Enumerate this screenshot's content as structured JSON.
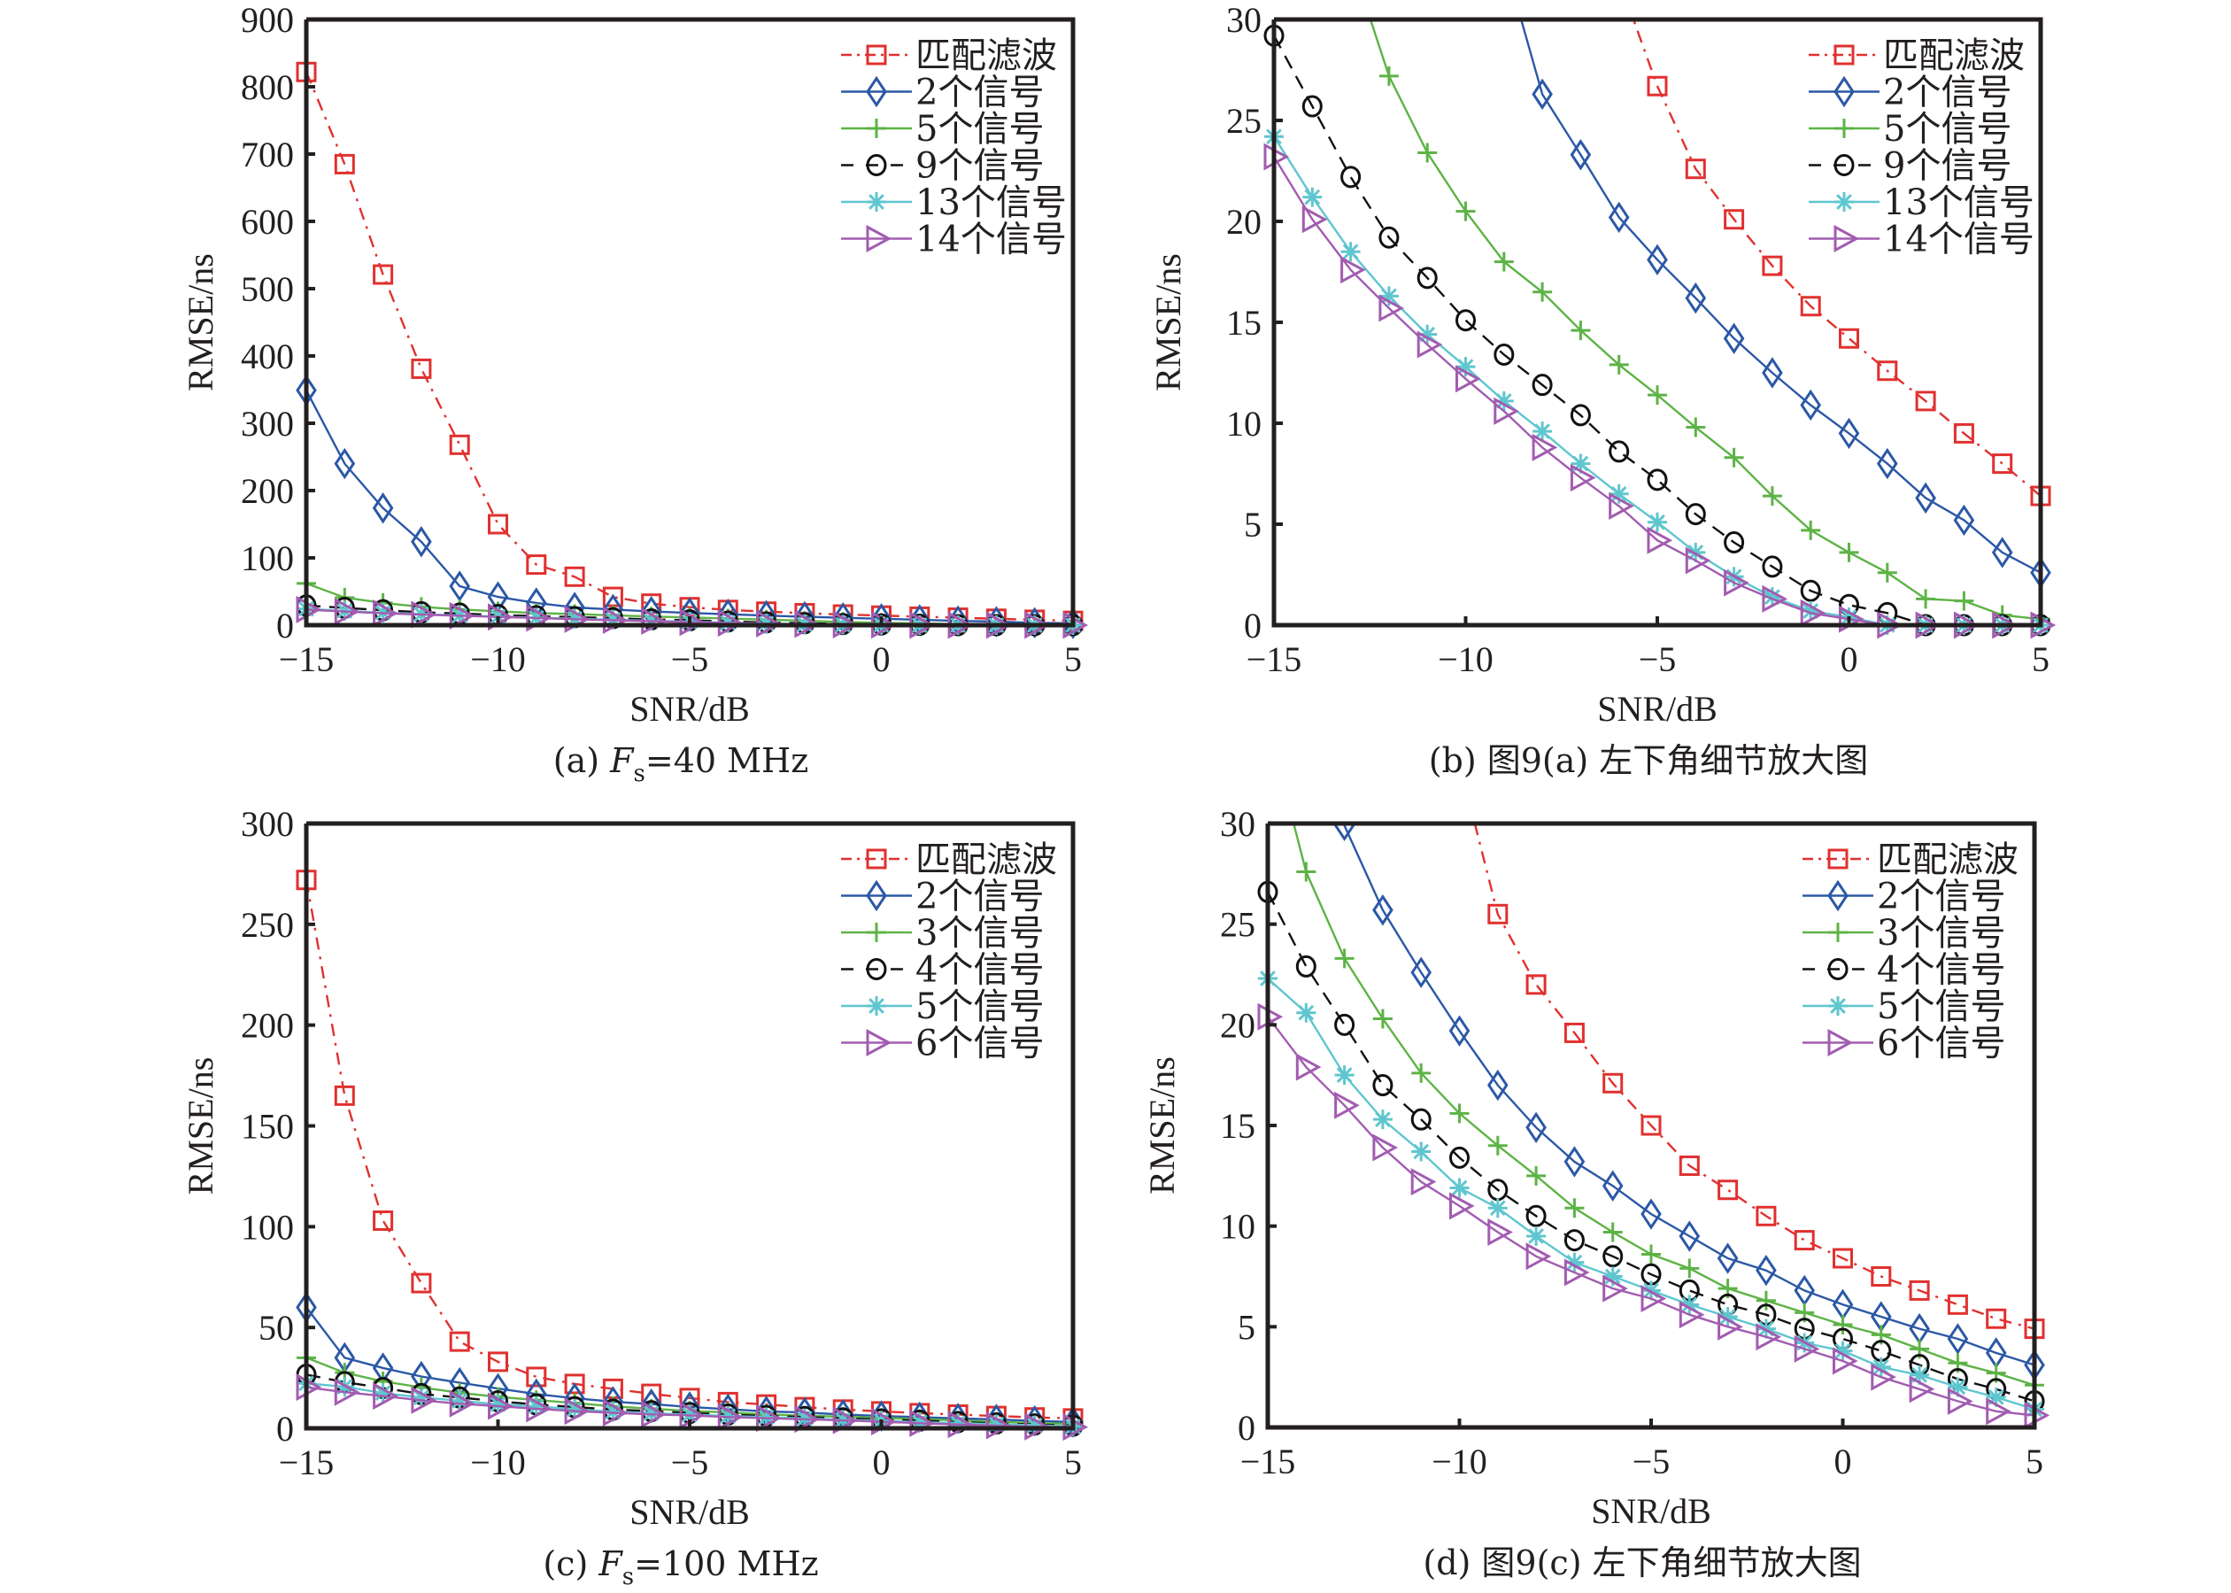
{
  "chart_data": [
    {
      "id": "a",
      "type": "line",
      "caption": {
        "prefix": "(a) ",
        "var": "F",
        "sub": "s",
        "suffix": "=40 MHz"
      },
      "xlabel": "SNR/dB",
      "ylabel": "RMSE/ns",
      "xlim": [
        -15,
        5
      ],
      "ylim": [
        0,
        900
      ],
      "xticks": [
        -15,
        -10,
        -5,
        0,
        5
      ],
      "xtick_labels": [
        "−15",
        "−10",
        "−5",
        "0",
        "5"
      ],
      "yticks": [
        0,
        100,
        200,
        300,
        400,
        500,
        600,
        700,
        800,
        900
      ],
      "ytick_labels": [
        "0",
        "100",
        "200",
        "300",
        "400",
        "500",
        "600",
        "700",
        "800",
        "900"
      ],
      "grid": false,
      "legend_position": "top-right",
      "x": [
        -15,
        -14,
        -13,
        -12,
        -11,
        -10,
        -9,
        -8,
        -7,
        -6,
        -5,
        -4,
        -3,
        -2,
        -1,
        0,
        1,
        2,
        3,
        4,
        5
      ],
      "series": [
        {
          "name": "匹配滤波",
          "color": "#e0312f",
          "marker": "square",
          "dash": "dashdot",
          "values": [
            822,
            685,
            521,
            381,
            268,
            150,
            90,
            72,
            42,
            32,
            26.7,
            22.6,
            20.1,
            17.8,
            15.8,
            14.2,
            12.6,
            11.1,
            9.5,
            8.0,
            6.4
          ]
        },
        {
          "name": "2个信号",
          "color": "#2b58a6",
          "marker": "diamond",
          "dash": "solid",
          "values": [
            349,
            240,
            174,
            124,
            58,
            42,
            33,
            26.3,
            23.3,
            20.2,
            18.1,
            16.2,
            14.2,
            12.5,
            10.9,
            9.5,
            8.0,
            6.3,
            5.2,
            3.6,
            2.6
          ]
        },
        {
          "name": "5个信号",
          "color": "#5db346",
          "marker": "plus",
          "dash": "solid",
          "values": [
            62,
            41,
            33,
            27.2,
            23.4,
            20.5,
            18.0,
            16.5,
            14.6,
            12.9,
            11.4,
            9.8,
            8.3,
            6.4,
            4.7,
            3.6,
            2.6,
            1.3,
            1.2,
            0.5,
            0.3
          ]
        },
        {
          "name": "9个信号",
          "color": "#111111",
          "marker": "circle",
          "dash": "dashed",
          "values": [
            29.2,
            25.7,
            22.2,
            19.2,
            17.2,
            15.1,
            13.4,
            11.9,
            10.4,
            8.6,
            7.2,
            5.5,
            4.1,
            2.9,
            1.7,
            1.0,
            0.6,
            0,
            0,
            0,
            0
          ]
        },
        {
          "name": "13个信号",
          "color": "#5fc6cf",
          "marker": "asterisk",
          "dash": "solid",
          "values": [
            24.2,
            21.2,
            18.5,
            16.3,
            14.4,
            12.8,
            11.1,
            9.6,
            8.0,
            6.5,
            5.1,
            3.6,
            2.4,
            1.4,
            0.7,
            0.4,
            0,
            0,
            0,
            0,
            0
          ]
        },
        {
          "name": "14个信号",
          "color": "#a25cb0",
          "marker": "triangle-right",
          "dash": "solid",
          "values": [
            23.2,
            20.1,
            17.6,
            15.7,
            13.9,
            12.2,
            10.6,
            8.8,
            7.3,
            5.9,
            4.2,
            3.2,
            2.1,
            1.3,
            0.6,
            0.3,
            0,
            0,
            0,
            0,
            0
          ]
        }
      ]
    },
    {
      "id": "b",
      "type": "line",
      "caption": {
        "prefix": "(b) 图9(a) 左下角细节放大图",
        "var": "",
        "sub": "",
        "suffix": ""
      },
      "xlabel": "SNR/dB",
      "ylabel": "RMSE/ns",
      "xlim": [
        -15,
        5
      ],
      "ylim": [
        0,
        30
      ],
      "xticks": [
        -15,
        -10,
        -5,
        0,
        5
      ],
      "xtick_labels": [
        "−15",
        "−10",
        "−5",
        "0",
        "5"
      ],
      "yticks": [
        0,
        5,
        10,
        15,
        20,
        25,
        30
      ],
      "ytick_labels": [
        "0",
        "5",
        "10",
        "15",
        "20",
        "25",
        "30"
      ],
      "grid": false,
      "legend_position": "top-right",
      "x": [
        -15,
        -14,
        -13,
        -12,
        -11,
        -10,
        -9,
        -8,
        -7,
        -6,
        -5,
        -4,
        -3,
        -2,
        -1,
        0,
        1,
        2,
        3,
        4,
        5
      ],
      "series": [
        {
          "name": "匹配滤波",
          "color": "#e0312f",
          "marker": "square",
          "dash": "dashdot",
          "values": [
            822,
            685,
            521,
            381,
            268,
            150,
            90,
            72,
            42,
            32,
            26.7,
            22.6,
            20.1,
            17.8,
            15.8,
            14.2,
            12.6,
            11.1,
            9.5,
            8.0,
            6.4
          ]
        },
        {
          "name": "2个信号",
          "color": "#2b58a6",
          "marker": "diamond",
          "dash": "solid",
          "values": [
            349,
            240,
            174,
            124,
            58,
            42,
            33,
            26.3,
            23.3,
            20.2,
            18.1,
            16.2,
            14.2,
            12.5,
            10.9,
            9.5,
            8.0,
            6.3,
            5.2,
            3.6,
            2.6
          ]
        },
        {
          "name": "5个信号",
          "color": "#5db346",
          "marker": "plus",
          "dash": "solid",
          "values": [
            62,
            41,
            33,
            27.2,
            23.4,
            20.5,
            18.0,
            16.5,
            14.6,
            12.9,
            11.4,
            9.8,
            8.3,
            6.4,
            4.7,
            3.6,
            2.6,
            1.3,
            1.2,
            0.5,
            0.3
          ]
        },
        {
          "name": "9个信号",
          "color": "#111111",
          "marker": "circle",
          "dash": "dashed",
          "values": [
            29.2,
            25.7,
            22.2,
            19.2,
            17.2,
            15.1,
            13.4,
            11.9,
            10.4,
            8.6,
            7.2,
            5.5,
            4.1,
            2.9,
            1.7,
            1.0,
            0.6,
            0,
            0,
            0,
            0
          ]
        },
        {
          "name": "13个信号",
          "color": "#5fc6cf",
          "marker": "asterisk",
          "dash": "solid",
          "values": [
            24.2,
            21.2,
            18.5,
            16.3,
            14.4,
            12.8,
            11.1,
            9.6,
            8.0,
            6.5,
            5.1,
            3.6,
            2.4,
            1.4,
            0.7,
            0.4,
            0,
            0,
            0,
            0,
            0
          ]
        },
        {
          "name": "14个信号",
          "color": "#a25cb0",
          "marker": "triangle-right",
          "dash": "solid",
          "values": [
            23.2,
            20.1,
            17.6,
            15.7,
            13.9,
            12.2,
            10.6,
            8.8,
            7.3,
            5.9,
            4.2,
            3.2,
            2.1,
            1.3,
            0.6,
            0.3,
            0,
            0,
            0,
            0,
            0
          ]
        }
      ]
    },
    {
      "id": "c",
      "type": "line",
      "caption": {
        "prefix": "(c) ",
        "var": "F",
        "sub": "s",
        "suffix": "=100 MHz"
      },
      "xlabel": "SNR/dB",
      "ylabel": "RMSE/ns",
      "xlim": [
        -15,
        5
      ],
      "ylim": [
        0,
        300
      ],
      "xticks": [
        -15,
        -10,
        -5,
        0,
        5
      ],
      "xtick_labels": [
        "−15",
        "−10",
        "−5",
        "0",
        "5"
      ],
      "yticks": [
        0,
        50,
        100,
        150,
        200,
        250,
        300
      ],
      "ytick_labels": [
        "0",
        "50",
        "100",
        "150",
        "200",
        "250",
        "300"
      ],
      "grid": false,
      "legend_position": "top-right",
      "x": [
        -15,
        -14,
        -13,
        -12,
        -11,
        -10,
        -9,
        -8,
        -7,
        -6,
        -5,
        -4,
        -3,
        -2,
        -1,
        0,
        1,
        2,
        3,
        4,
        5
      ],
      "series": [
        {
          "name": "匹配滤波",
          "color": "#e0312f",
          "marker": "square",
          "dash": "dashdot",
          "values": [
            272,
            165,
            103,
            72,
            43,
            33,
            25.5,
            22.0,
            19.6,
            17.1,
            15.0,
            13.0,
            11.8,
            10.5,
            9.3,
            8.4,
            7.5,
            6.8,
            6.1,
            5.4,
            4.9
          ]
        },
        {
          "name": "2个信号",
          "color": "#2b58a6",
          "marker": "diamond",
          "dash": "solid",
          "values": [
            60,
            35,
            29.9,
            25.7,
            22.6,
            19.7,
            17.0,
            14.9,
            13.2,
            12.0,
            10.6,
            9.5,
            8.4,
            7.8,
            6.8,
            6.1,
            5.5,
            4.9,
            4.4,
            3.7,
            3.1
          ]
        },
        {
          "name": "3个信号",
          "color": "#5db346",
          "marker": "plus",
          "dash": "solid",
          "values": [
            35,
            27.6,
            23.3,
            20.3,
            17.6,
            15.6,
            14.0,
            12.5,
            10.9,
            9.7,
            8.6,
            7.9,
            6.9,
            6.3,
            5.7,
            5.1,
            4.6,
            3.9,
            3.2,
            2.7,
            2.1
          ]
        },
        {
          "name": "4个信号",
          "color": "#111111",
          "marker": "circle",
          "dash": "dashed",
          "values": [
            26.6,
            22.9,
            20.0,
            17.0,
            15.3,
            13.4,
            11.8,
            10.5,
            9.3,
            8.5,
            7.6,
            6.8,
            6.1,
            5.6,
            4.9,
            4.4,
            3.8,
            3.1,
            2.4,
            1.9,
            1.3
          ]
        },
        {
          "name": "5个信号",
          "color": "#5fc6cf",
          "marker": "asterisk",
          "dash": "solid",
          "values": [
            22.3,
            20.6,
            17.5,
            15.3,
            13.7,
            11.9,
            10.9,
            9.5,
            8.2,
            7.5,
            6.8,
            6.1,
            5.5,
            4.9,
            4.2,
            3.8,
            3.0,
            2.6,
            2.0,
            1.5,
            0.9
          ]
        },
        {
          "name": "6个信号",
          "color": "#a25cb0",
          "marker": "triangle-right",
          "dash": "solid",
          "values": [
            20.4,
            17.9,
            16.0,
            13.9,
            12.2,
            11.0,
            9.7,
            8.5,
            7.7,
            6.9,
            6.4,
            5.6,
            5.0,
            4.5,
            3.9,
            3.3,
            2.5,
            1.9,
            1.3,
            0.8,
            0.6
          ]
        }
      ]
    },
    {
      "id": "d",
      "type": "line",
      "caption": {
        "prefix": "(d) 图9(c) 左下角细节放大图",
        "var": "",
        "sub": "",
        "suffix": ""
      },
      "xlabel": "SNR/dB",
      "ylabel": "RMSE/ns",
      "xlim": [
        -15,
        5
      ],
      "ylim": [
        0,
        30
      ],
      "xticks": [
        -15,
        -10,
        -5,
        0,
        5
      ],
      "xtick_labels": [
        "−15",
        "−10",
        "−5",
        "0",
        "5"
      ],
      "yticks": [
        0,
        5,
        10,
        15,
        20,
        25,
        30
      ],
      "ytick_labels": [
        "0",
        "5",
        "10",
        "15",
        "20",
        "25",
        "30"
      ],
      "grid": false,
      "legend_position": "top-right",
      "x": [
        -15,
        -14,
        -13,
        -12,
        -11,
        -10,
        -9,
        -8,
        -7,
        -6,
        -5,
        -4,
        -3,
        -2,
        -1,
        0,
        1,
        2,
        3,
        4,
        5
      ],
      "series": [
        {
          "name": "匹配滤波",
          "color": "#e0312f",
          "marker": "square",
          "dash": "dashdot",
          "values": [
            272,
            165,
            103,
            72,
            43,
            33,
            25.5,
            22.0,
            19.6,
            17.1,
            15.0,
            13.0,
            11.8,
            10.5,
            9.3,
            8.4,
            7.5,
            6.8,
            6.1,
            5.4,
            4.9
          ]
        },
        {
          "name": "2个信号",
          "color": "#2b58a6",
          "marker": "diamond",
          "dash": "solid",
          "values": [
            60,
            35,
            29.9,
            25.7,
            22.6,
            19.7,
            17.0,
            14.9,
            13.2,
            12.0,
            10.6,
            9.5,
            8.4,
            7.8,
            6.8,
            6.1,
            5.5,
            4.9,
            4.4,
            3.7,
            3.1
          ]
        },
        {
          "name": "3个信号",
          "color": "#5db346",
          "marker": "plus",
          "dash": "solid",
          "values": [
            35,
            27.6,
            23.3,
            20.3,
            17.6,
            15.6,
            14.0,
            12.5,
            10.9,
            9.7,
            8.6,
            7.9,
            6.9,
            6.3,
            5.7,
            5.1,
            4.6,
            3.9,
            3.2,
            2.7,
            2.1
          ]
        },
        {
          "name": "4个信号",
          "color": "#111111",
          "marker": "circle",
          "dash": "dashed",
          "values": [
            26.6,
            22.9,
            20.0,
            17.0,
            15.3,
            13.4,
            11.8,
            10.5,
            9.3,
            8.5,
            7.6,
            6.8,
            6.1,
            5.6,
            4.9,
            4.4,
            3.8,
            3.1,
            2.4,
            1.9,
            1.3
          ]
        },
        {
          "name": "5个信号",
          "color": "#5fc6cf",
          "marker": "asterisk",
          "dash": "solid",
          "values": [
            22.3,
            20.6,
            17.5,
            15.3,
            13.7,
            11.9,
            10.9,
            9.5,
            8.2,
            7.5,
            6.8,
            6.1,
            5.5,
            4.9,
            4.2,
            3.8,
            3.0,
            2.6,
            2.0,
            1.5,
            0.9
          ]
        },
        {
          "name": "6个信号",
          "color": "#a25cb0",
          "marker": "triangle-right",
          "dash": "solid",
          "values": [
            20.4,
            17.9,
            16.0,
            13.9,
            12.2,
            11.0,
            9.7,
            8.5,
            7.7,
            6.9,
            6.4,
            5.6,
            5.0,
            4.5,
            3.9,
            3.3,
            2.5,
            1.9,
            1.3,
            0.8,
            0.6
          ]
        }
      ]
    }
  ]
}
